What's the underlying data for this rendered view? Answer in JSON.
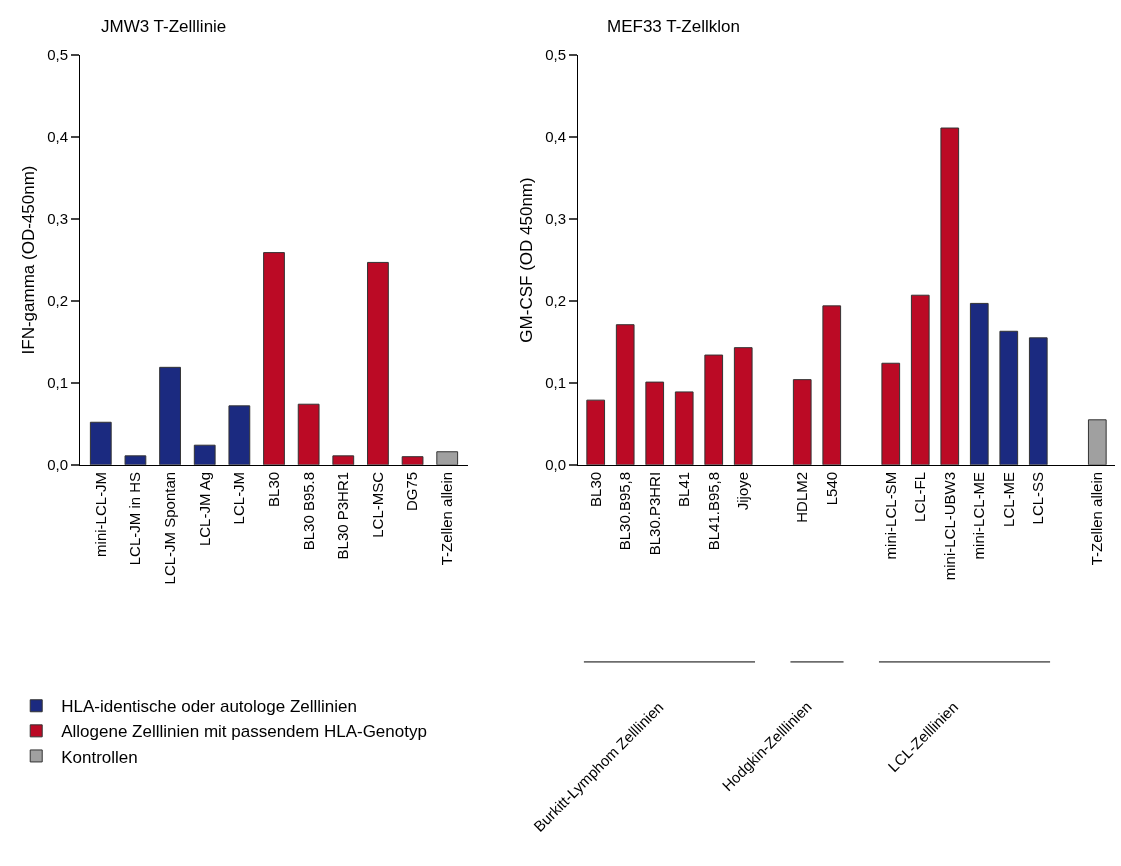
{
  "chart_data": [
    {
      "type": "bar",
      "title": "JMW3 T-Zelllinie",
      "ylabel": "IFN-gamma (OD-450nm)",
      "categories": [
        "mini-LCL-JM",
        "LCL-JM in HS",
        "LCL-JM Spontan",
        "LCL-JM Ag",
        "LCL-JM",
        "BL30",
        "BL30 B95.8",
        "BL30 P3HR1",
        "LCL-MSC",
        "DG75",
        "T-Zellen allein"
      ],
      "series": [
        {
          "name": "HLA-identische oder autologe Zelllinien",
          "color": "#1b2a80",
          "values": [
            0.052,
            0.011,
            0.119,
            0.024,
            0.072,
            null,
            null,
            null,
            null,
            null,
            null
          ]
        },
        {
          "name": "Allogene Zelllinien mit passendem HLA-Genotyp",
          "color": "#bb0a25",
          "values": [
            null,
            null,
            null,
            null,
            null,
            0.259,
            0.074,
            0.011,
            0.247,
            0.01,
            null
          ]
        },
        {
          "name": "Kontrollen",
          "color": "#a0a0a0",
          "values": [
            null,
            null,
            null,
            null,
            null,
            null,
            null,
            null,
            null,
            null,
            0.016
          ]
        }
      ],
      "ylim": [
        0,
        0.5
      ],
      "yticks": [
        {
          "value": 0,
          "label": "0,0"
        },
        {
          "value": 0.1,
          "label": "0,1"
        },
        {
          "value": 0.2,
          "label": "0,2"
        },
        {
          "value": 0.3,
          "label": "0,3"
        },
        {
          "value": 0.4,
          "label": "0,4"
        },
        {
          "value": 0.5,
          "label": "0,5"
        }
      ],
      "legend": "bottom left"
    },
    {
      "type": "bar",
      "title": "MEF33 T-Zellklon",
      "ylabel": "GM-CSF (OD 450nm)",
      "categories": [
        "BL30",
        "BL30.B95,8",
        "BL30.P3HRI",
        "BL41",
        "BL41.B95,8",
        "Jijoye",
        null,
        "HDLM2",
        "L540",
        null,
        "mini-LCL-SM",
        "LCL-FL",
        "mini-LCL-UBW3",
        "mini-LCL-ME",
        "LCL-ME",
        "LCL-SS",
        null,
        "T-Zellen allein"
      ],
      "series": [
        {
          "color": "#1b2a80",
          "values": [
            null,
            null,
            null,
            null,
            null,
            null,
            null,
            null,
            null,
            null,
            null,
            null,
            null,
            0.197,
            0.163,
            0.155,
            null,
            null
          ]
        },
        {
          "color": "#bb0a25",
          "values": [
            0.079,
            0.171,
            0.101,
            0.089,
            0.134,
            0.143,
            null,
            0.104,
            0.194,
            null,
            0.124,
            0.207,
            0.411,
            null,
            null,
            null,
            null,
            null
          ]
        },
        {
          "color": "#a0a0a0",
          "values": [
            null,
            null,
            null,
            null,
            null,
            null,
            null,
            null,
            null,
            null,
            null,
            null,
            null,
            null,
            null,
            null,
            null,
            0.055
          ]
        }
      ],
      "ylim": [
        0,
        0.5
      ],
      "yticks": [
        {
          "value": 0,
          "label": "0,0"
        },
        {
          "value": 0.1,
          "label": "0,1"
        },
        {
          "value": 0.2,
          "label": "0,2"
        },
        {
          "value": 0.3,
          "label": "0,3"
        },
        {
          "value": 0.4,
          "label": "0,4"
        },
        {
          "value": 0.5,
          "label": "0,5"
        }
      ],
      "annotations": [
        "Burkitt-Lymphom Zelllinien",
        "Hodgkin-Zelllinien",
        "LCL-Zelllinien"
      ]
    }
  ]
}
